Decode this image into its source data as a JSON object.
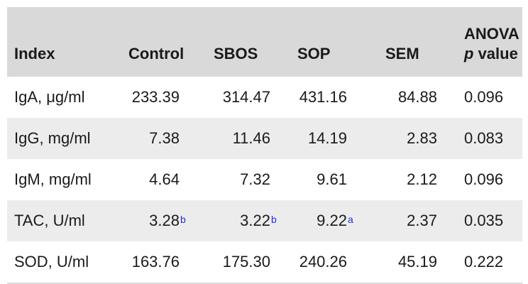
{
  "table": {
    "headers": {
      "index": "Index",
      "control": "Control",
      "sbos": "SBOS",
      "sop": "SOP",
      "sem": "SEM",
      "anova_line1": "ANOVA",
      "anova_p": "p",
      "anova_line2_rest": " value"
    },
    "rows": [
      {
        "index": "IgA, μg/ml",
        "control": "233.39",
        "control_sup": "",
        "sbos": "314.47",
        "sbos_sup": "",
        "sop": "431.16",
        "sop_sup": "",
        "sem": "84.88",
        "p": "0.096"
      },
      {
        "index": "IgG, mg/ml",
        "control": "7.38",
        "control_sup": "",
        "sbos": "11.46",
        "sbos_sup": "",
        "sop": "14.19",
        "sop_sup": "",
        "sem": "2.83",
        "p": "0.083"
      },
      {
        "index": "IgM, mg/ml",
        "control": "4.64",
        "control_sup": "",
        "sbos": "7.32",
        "sbos_sup": "",
        "sop": "9.61",
        "sop_sup": "",
        "sem": "2.12",
        "p": "0.096"
      },
      {
        "index": "TAC, U/ml",
        "control": "3.28",
        "control_sup": "b",
        "sbos": "3.22",
        "sbos_sup": "b",
        "sop": "9.22",
        "sop_sup": "a",
        "sem": "2.37",
        "p": "0.035"
      },
      {
        "index": "SOD, U/ml",
        "control": "163.76",
        "control_sup": "",
        "sbos": "175.30",
        "sbos_sup": "",
        "sop": "240.26",
        "sop_sup": "",
        "sem": "45.19",
        "p": "0.222"
      }
    ]
  },
  "colors": {
    "header_bg": "#d9d9d9",
    "stripe_bg": "#ececec",
    "superscript": "#2a2ae0"
  }
}
